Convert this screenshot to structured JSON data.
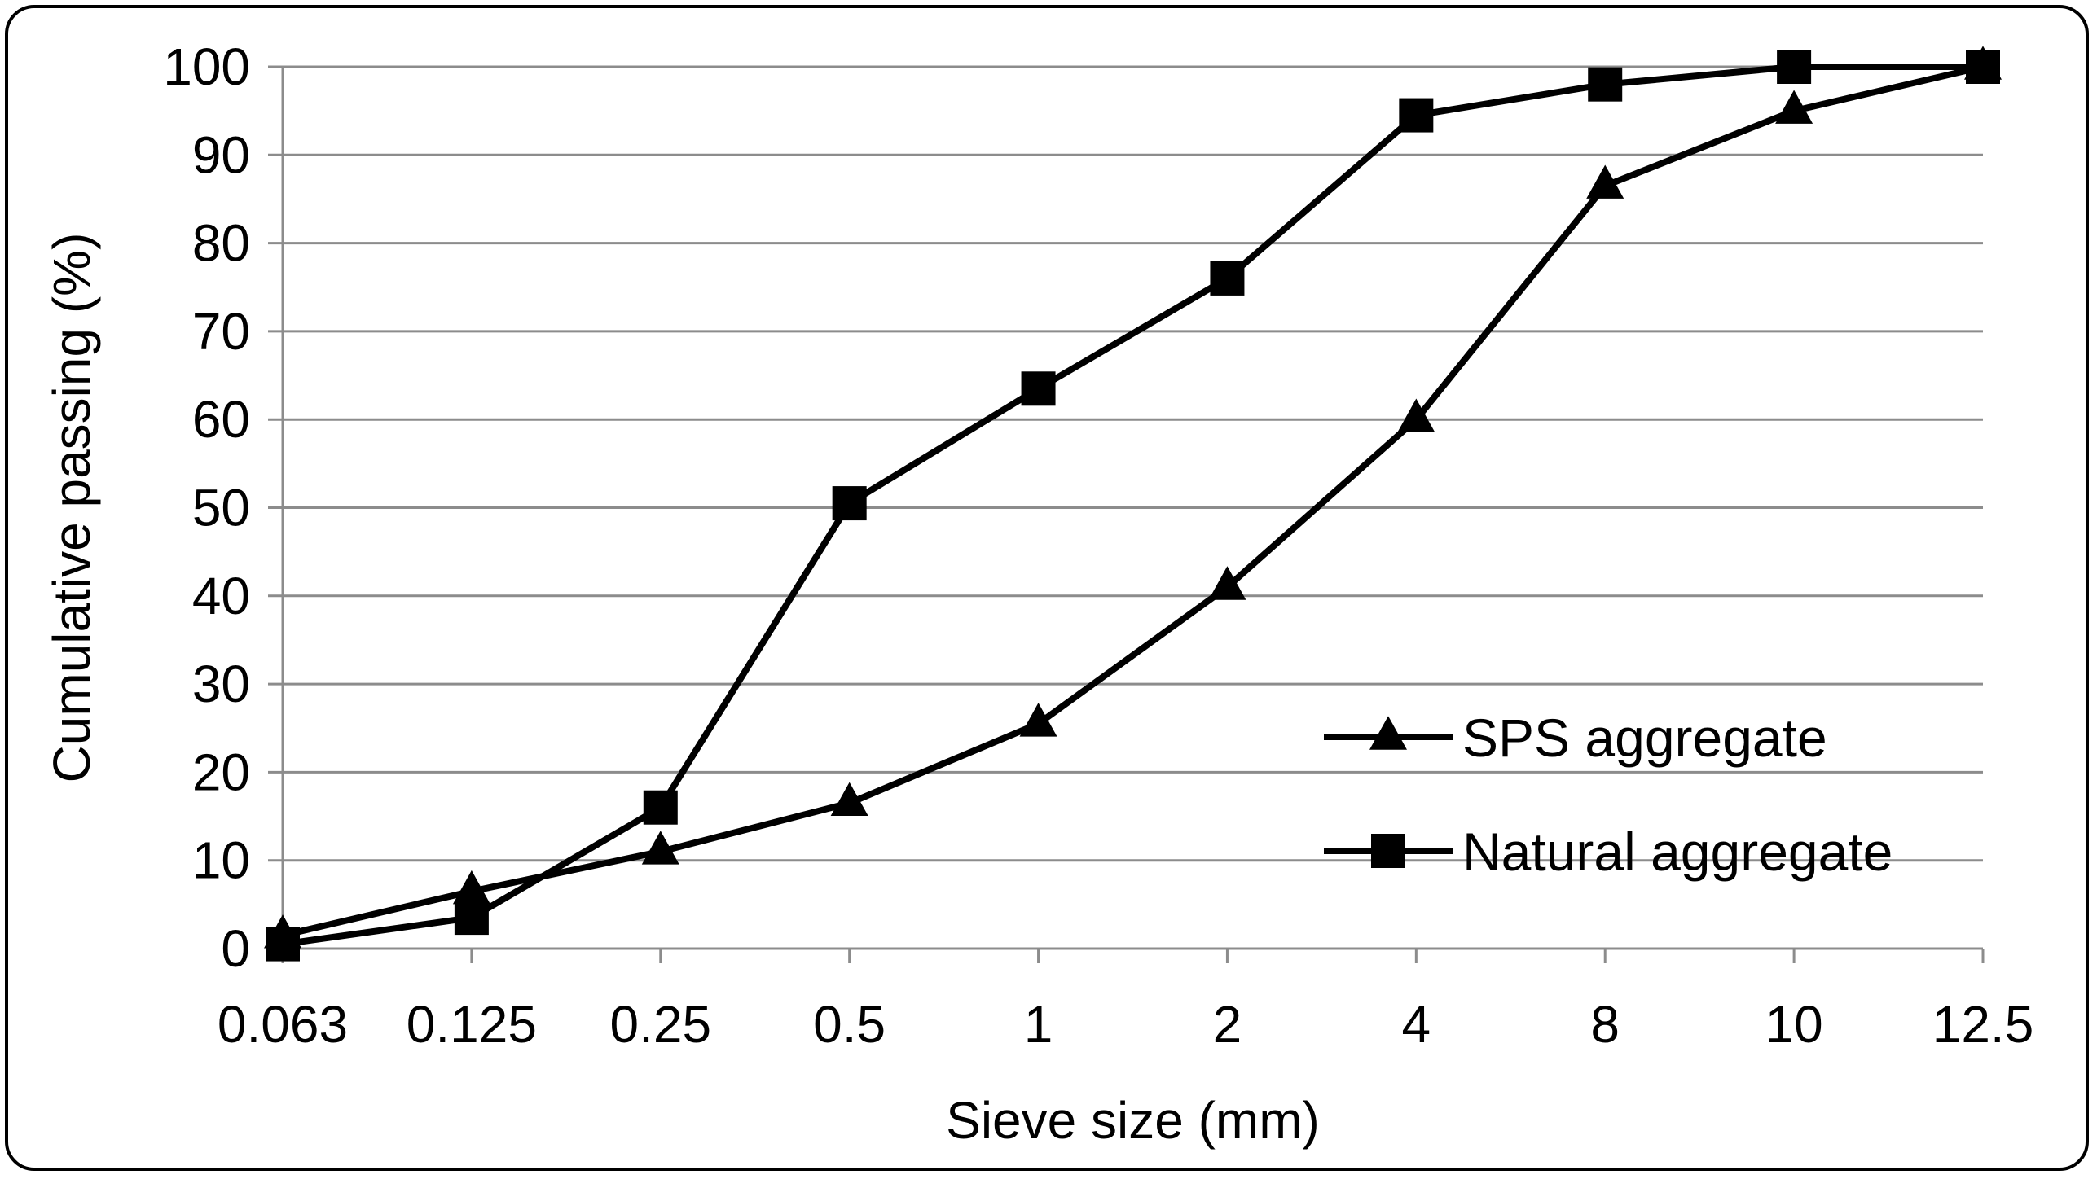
{
  "chart_data": {
    "type": "line",
    "title": "",
    "xlabel": "Sieve size (mm)",
    "ylabel": "Cumulative passing (%)",
    "categories": [
      "0.063",
      "0.125",
      "0.25",
      "0.5",
      "1",
      "2",
      "4",
      "8",
      "10",
      "12.5"
    ],
    "ylim": [
      0,
      100
    ],
    "yticks": [
      "0",
      "10",
      "20",
      "30",
      "40",
      "50",
      "60",
      "70",
      "80",
      "90",
      "100"
    ],
    "grid": "horizontal",
    "legend": "bottom-right",
    "series": [
      {
        "name": "SPS aggregate",
        "marker": "triangle",
        "values": [
          1.5,
          6.5,
          11,
          16.5,
          25.5,
          41,
          60,
          86.5,
          95,
          100
        ]
      },
      {
        "name": "Natural aggregate",
        "marker": "square",
        "values": [
          0.5,
          3.5,
          16,
          50.5,
          63.5,
          76,
          94.5,
          98,
          100,
          100
        ]
      }
    ],
    "colors": {
      "line": "#000000",
      "grid": "#8c8c8c",
      "background": "#ffffff"
    }
  }
}
